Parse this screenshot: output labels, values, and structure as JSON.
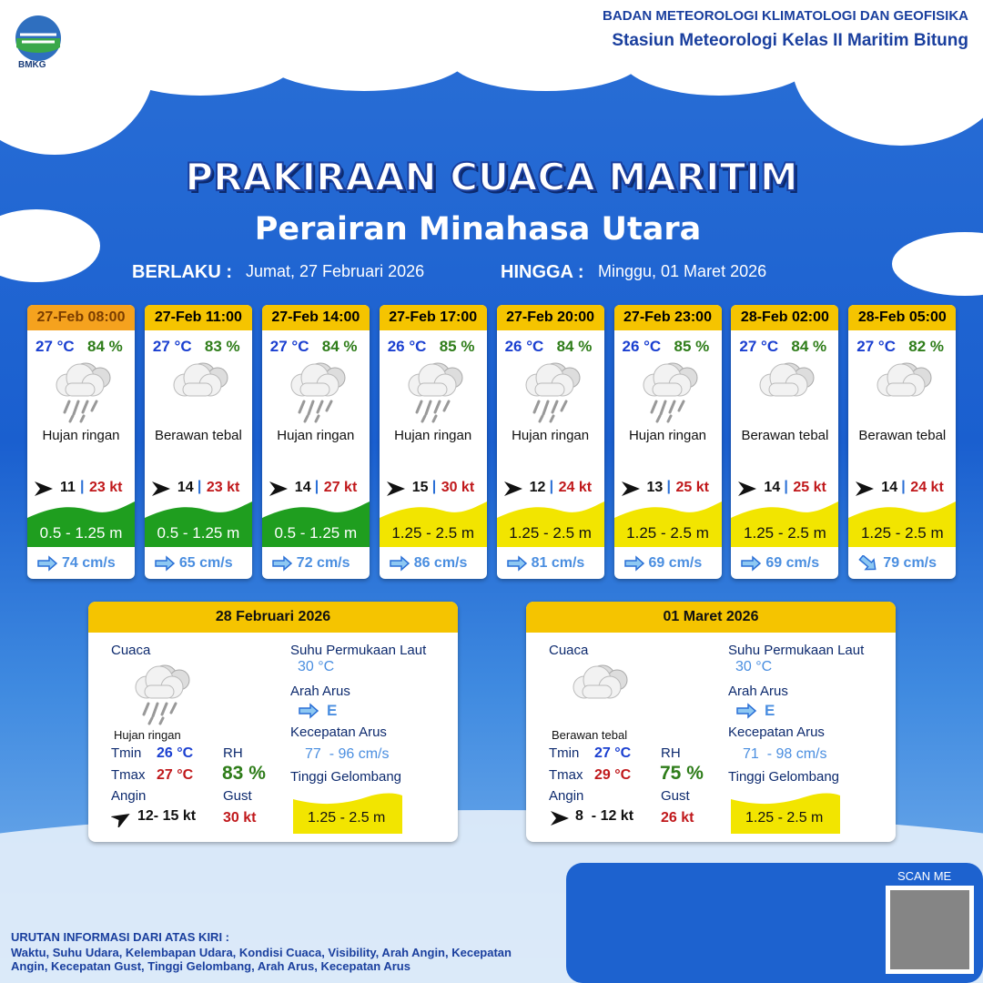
{
  "header": {
    "logo_text": "BMKG",
    "org": "BADAN METEOROLOGI KLIMATOLOGI DAN GEOFISIKA",
    "station": "Stasiun Meteorologi Kelas II Maritim Bitung"
  },
  "title": "PRAKIRAAN CUACA MARITIM",
  "subtitle": "Perairan Minahasa Utara",
  "validity": {
    "from_label": "BERLAKU :",
    "from": "Jumat, 27 Februari 2026",
    "to_label": "HINGGA :",
    "to": "Minggu, 01 Maret 2026"
  },
  "cards": [
    {
      "time": "27-Feb 08:00",
      "temp": "27 °C",
      "rh": "84 %",
      "icon": "rain",
      "weather": "Hujan ringan",
      "wind": "11",
      "gust": "23 kt",
      "wave": "0.5 - 1.25 m",
      "wave_color": "#1f9e1f",
      "current": "74 cm/s"
    },
    {
      "time": "27-Feb 11:00",
      "temp": "27 °C",
      "rh": "83 %",
      "icon": "cloud",
      "weather": "Berawan tebal",
      "wind": "14",
      "gust": "23 kt",
      "wave": "0.5 - 1.25 m",
      "wave_color": "#1f9e1f",
      "current": "65 cm/s"
    },
    {
      "time": "27-Feb 14:00",
      "temp": "27 °C",
      "rh": "84 %",
      "icon": "rain",
      "weather": "Hujan ringan",
      "wind": "14",
      "gust": "27 kt",
      "wave": "0.5 - 1.25 m",
      "wave_color": "#1f9e1f",
      "current": "72 cm/s"
    },
    {
      "time": "27-Feb 17:00",
      "temp": "26 °C",
      "rh": "85 %",
      "icon": "rain",
      "weather": "Hujan ringan",
      "wind": "15",
      "gust": "30 kt",
      "wave": "1.25 - 2.5 m",
      "wave_color": "#f2e500",
      "current": "86 cm/s"
    },
    {
      "time": "27-Feb 20:00",
      "temp": "26 °C",
      "rh": "84 %",
      "icon": "rain",
      "weather": "Hujan ringan",
      "wind": "12",
      "gust": "24 kt",
      "wave": "1.25 - 2.5 m",
      "wave_color": "#f2e500",
      "current": "81 cm/s"
    },
    {
      "time": "27-Feb 23:00",
      "temp": "26 °C",
      "rh": "85 %",
      "icon": "rain",
      "weather": "Hujan ringan",
      "wind": "13",
      "gust": "25 kt",
      "wave": "1.25 - 2.5 m",
      "wave_color": "#f2e500",
      "current": "69 cm/s"
    },
    {
      "time": "28-Feb 02:00",
      "temp": "27 °C",
      "rh": "84 %",
      "icon": "cloud",
      "weather": "Berawan tebal",
      "wind": "14",
      "gust": "25 kt",
      "wave": "1.25 - 2.5 m",
      "wave_color": "#f2e500",
      "current": "69 cm/s"
    },
    {
      "time": "28-Feb 05:00",
      "temp": "27 °C",
      "rh": "82 %",
      "icon": "cloud",
      "weather": "Berawan tebal",
      "wind": "14",
      "gust": "24 kt",
      "wave": "1.25 - 2.5 m",
      "wave_color": "#f2e500",
      "current": "79 cm/s"
    }
  ],
  "summaries": [
    {
      "date": "28 Februari 2026",
      "weather_label": "Cuaca",
      "icon": "rain",
      "weather": "Hujan ringan",
      "tmin_label": "Tmin",
      "tmin": "26 °C",
      "tmax_label": "Tmax",
      "tmax": "27 °C",
      "rh_label": "RH",
      "rh": "83 %",
      "wind_label": "Angin",
      "wind": "12- 15 kt",
      "gust_label": "Gust",
      "gust": "30 kt",
      "sst_label": "Suhu Permukaan Laut",
      "sst": "30 °C",
      "dir_label": "Arah Arus",
      "dir": "E",
      "speed_label": "Kecepatan Arus",
      "speed": "77  - 96 cm/s",
      "wave_label": "Tinggi Gelombang",
      "wave": "1.25 - 2.5 m"
    },
    {
      "date": "01 Maret 2026",
      "weather_label": "Cuaca",
      "icon": "cloud",
      "weather": "Berawan tebal",
      "tmin_label": "Tmin",
      "tmin": "27 °C",
      "tmax_label": "Tmax",
      "tmax": "29 °C",
      "rh_label": "RH",
      "rh": "75 %",
      "wind_label": "Angin",
      "wind": "8  - 12 kt",
      "gust_label": "Gust",
      "gust": "26 kt",
      "sst_label": "Suhu Permukaan Laut",
      "sst": "30 °C",
      "dir_label": "Arah Arus",
      "dir": "E",
      "speed_label": "Kecepatan Arus",
      "speed": "71  - 98 cm/s",
      "wave_label": "Tinggi Gelombang",
      "wave": "1.25 - 2.5 m"
    }
  ],
  "footer": {
    "scan_me": "SCAN ME",
    "info_title": "URUTAN INFORMASI DARI ATAS KIRI :",
    "info_text": "Waktu, Suhu Udara, Kelembapan Udara, Kondisi Cuaca, Visibility, Arah Angin, Kecepatan Angin, Kecepatan Gust, Tinggi Gelombang, Arah Arus, Kecepatan Arus"
  }
}
